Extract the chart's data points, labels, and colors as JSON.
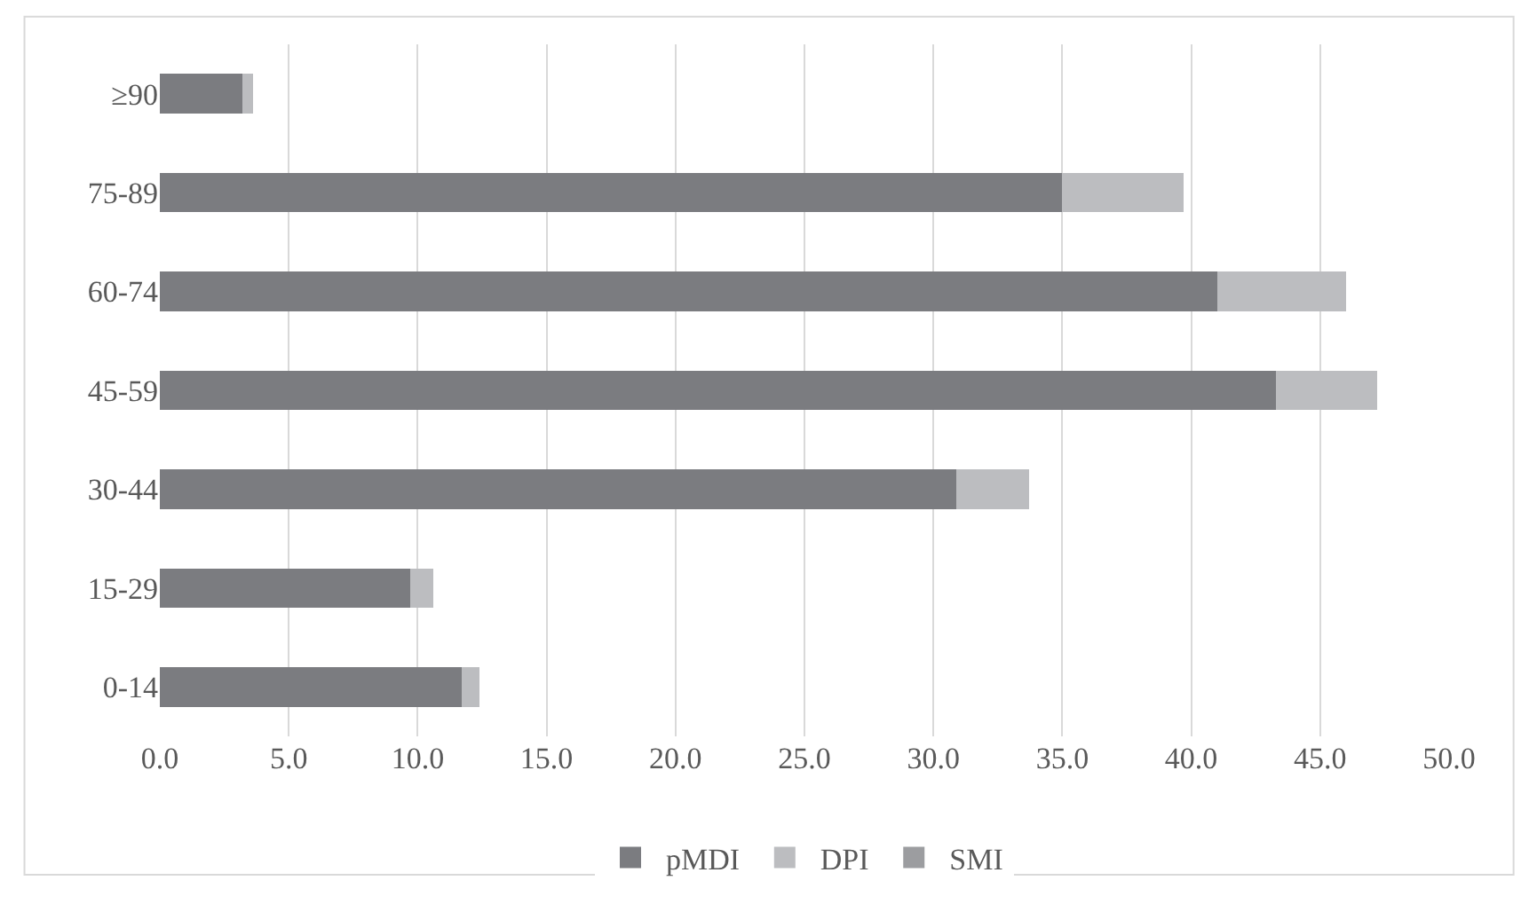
{
  "chart_data": {
    "type": "bar",
    "orientation": "horizontal",
    "stacked": true,
    "categories": [
      "≥90",
      "75-89",
      "60-74",
      "45-59",
      "30-44",
      "15-29",
      "0-14"
    ],
    "series": [
      {
        "name": "pMDI",
        "color": "#7b7c80",
        "values": [
          3.2,
          35.0,
          41.0,
          43.3,
          30.9,
          9.7,
          11.7
        ]
      },
      {
        "name": "DPI",
        "color": "#bcbdc0",
        "values": [
          0.4,
          4.7,
          5.0,
          3.9,
          2.8,
          0.9,
          0.7
        ]
      },
      {
        "name": "SMI",
        "color": "#9c9da0",
        "values": [
          0,
          0,
          0,
          0,
          0,
          0,
          0
        ]
      }
    ],
    "xlim": [
      0,
      50
    ],
    "xticks": [
      {
        "value": 0,
        "label": "0.0"
      },
      {
        "value": 5,
        "label": "5.0"
      },
      {
        "value": 10,
        "label": "10.0"
      },
      {
        "value": 15,
        "label": "15.0"
      },
      {
        "value": 20,
        "label": "20.0"
      },
      {
        "value": 25,
        "label": "25.0"
      },
      {
        "value": 30,
        "label": "30.0"
      },
      {
        "value": 35,
        "label": "35.0"
      },
      {
        "value": 40,
        "label": "40.0"
      },
      {
        "value": 45,
        "label": "45.0"
      },
      {
        "value": 50,
        "label": "50.0"
      }
    ],
    "grid": "x",
    "legend": "bottom"
  }
}
